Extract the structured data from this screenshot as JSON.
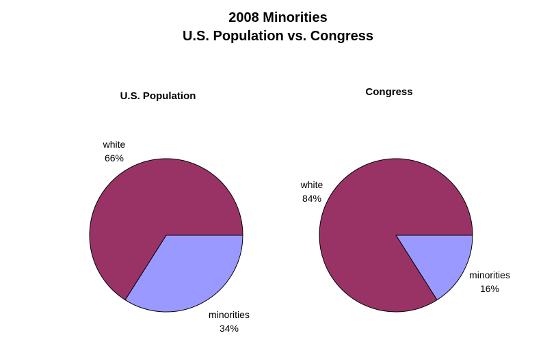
{
  "chart_title": {
    "line1": "2008 Minorities",
    "line2": "U.S. Population vs. Congress"
  },
  "colors": {
    "white_slice": "#993366",
    "minorities_slice": "#9999ff",
    "outline": "#000000"
  },
  "chart_data": [
    {
      "type": "pie",
      "title": "U.S. Population",
      "slices": [
        {
          "label": "white",
          "value": 66,
          "pct_label": "66%",
          "color": "#993366"
        },
        {
          "label": "minorities",
          "value": 34,
          "pct_label": "34%",
          "color": "#9999ff"
        }
      ]
    },
    {
      "type": "pie",
      "title": "Congress",
      "slices": [
        {
          "label": "white",
          "value": 84,
          "pct_label": "84%",
          "color": "#993366"
        },
        {
          "label": "minorities",
          "value": 16,
          "pct_label": "16%",
          "color": "#9999ff"
        }
      ]
    }
  ]
}
